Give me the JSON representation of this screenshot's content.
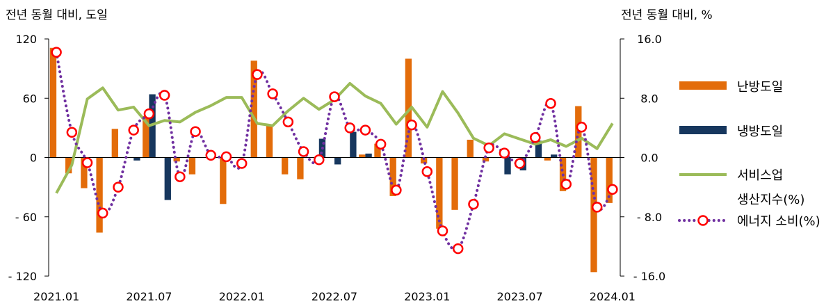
{
  "chart_data": {
    "type": "bar",
    "left_axis_title": "전년 동월 대비, 도일",
    "right_axis_title": "전년 동월 대비, %",
    "left_ylim": [
      -120,
      120
    ],
    "right_ylim": [
      -16.0,
      16.0
    ],
    "left_ticks": [
      {
        "value": 120,
        "label": "120"
      },
      {
        "value": 60,
        "label": "60"
      },
      {
        "value": 0,
        "label": "0"
      },
      {
        "value": -60,
        "label": "- 60"
      },
      {
        "value": -120,
        "label": "- 120"
      }
    ],
    "right_ticks": [
      {
        "value": 16,
        "label": "16.0"
      },
      {
        "value": 8,
        "label": "8.0"
      },
      {
        "value": 0,
        "label": "0.0"
      },
      {
        "value": -8,
        "label": "- 8.0"
      },
      {
        "value": -16,
        "label": "- 16.0"
      }
    ],
    "x": [
      "2021.01",
      "2021.02",
      "2021.03",
      "2021.04",
      "2021.05",
      "2021.06",
      "2021.07",
      "2021.08",
      "2021.09",
      "2021.10",
      "2021.11",
      "2021.12",
      "2022.01",
      "2022.02",
      "2022.03",
      "2022.04",
      "2022.05",
      "2022.06",
      "2022.07",
      "2022.08",
      "2022.09",
      "2022.10",
      "2022.11",
      "2022.12",
      "2023.01",
      "2023.02",
      "2023.03",
      "2023.04",
      "2023.05",
      "2023.06",
      "2023.07",
      "2023.08",
      "2023.09",
      "2023.10",
      "2023.11",
      "2023.12",
      "2024.01"
    ],
    "x_tick_labels": [
      "2021.01",
      "2021.07",
      "2022.01",
      "2022.07",
      "2023.01",
      "2023.07",
      "2024.01"
    ],
    "x_tick_indices": [
      0,
      6,
      12,
      18,
      24,
      30,
      36
    ],
    "series": [
      {
        "name": "난방도일",
        "kind": "bar",
        "axis": "left",
        "color": "#e36c0a",
        "values": [
          111,
          -16,
          -31,
          -76,
          29,
          0,
          42,
          0,
          -4,
          -17,
          0,
          -47,
          0,
          98,
          32,
          -17,
          -22,
          0,
          0,
          0,
          3,
          14,
          -39,
          100,
          -6,
          -72,
          -53,
          18,
          -4,
          0,
          0,
          0,
          -3,
          -34,
          52,
          -116,
          -46
        ]
      },
      {
        "name": "냉방도일",
        "kind": "bar",
        "axis": "left",
        "color": "#17375e",
        "values": [
          0,
          0,
          0,
          0,
          0,
          -3,
          64,
          -43,
          0,
          0,
          0,
          0,
          0,
          0,
          0,
          0,
          0,
          19,
          -7,
          26,
          4,
          0,
          0,
          0,
          0,
          0,
          0,
          0,
          0,
          -17,
          -13,
          17,
          3,
          0,
          0,
          0,
          0
        ]
      },
      {
        "name": "서비스업 생산지수(%)",
        "kind": "line",
        "axis": "right",
        "color": "#9bbb59",
        "values": [
          -4.8,
          -1.0,
          7.9,
          9.4,
          6.4,
          6.8,
          4.3,
          5.0,
          4.8,
          6.1,
          7.0,
          8.1,
          8.1,
          4.6,
          4.3,
          6.3,
          8.0,
          6.5,
          7.8,
          10.0,
          8.3,
          7.3,
          4.5,
          6.8,
          4.1,
          8.9,
          6.0,
          2.6,
          1.6,
          3.2,
          2.5,
          1.8,
          2.4,
          1.5,
          2.6,
          1.2,
          4.6
        ]
      },
      {
        "name": "에너지 소비(%)",
        "kind": "dotted-line-markers",
        "axis": "right",
        "color": "#7030a0",
        "marker_color": "#ff0000",
        "values": [
          14.2,
          3.4,
          -0.7,
          -7.5,
          -4.0,
          3.7,
          5.9,
          8.4,
          -2.6,
          3.5,
          0.3,
          0.1,
          -0.8,
          11.2,
          8.6,
          4.8,
          0.8,
          -0.3,
          8.2,
          4.0,
          3.7,
          1.8,
          -4.4,
          4.4,
          -1.9,
          -9.9,
          -12.3,
          -6.3,
          1.3,
          0.6,
          -0.8,
          2.7,
          7.3,
          -3.6,
          4.1,
          -6.7,
          -4.3
        ]
      }
    ],
    "legend": {
      "placement": "right",
      "entries": [
        {
          "lines": [
            "난방도일"
          ],
          "symbol": "bar",
          "color": "#e36c0a"
        },
        {
          "lines": [
            "냉방도일"
          ],
          "symbol": "bar",
          "color": "#17375e"
        },
        {
          "lines": [
            "서비스업",
            "생산지수(%)"
          ],
          "symbol": "line",
          "color": "#9bbb59"
        },
        {
          "lines": [
            "에너지 소비(%)"
          ],
          "symbol": "dotted-marker",
          "color": "#7030a0",
          "marker_color": "#ff0000"
        }
      ]
    }
  }
}
